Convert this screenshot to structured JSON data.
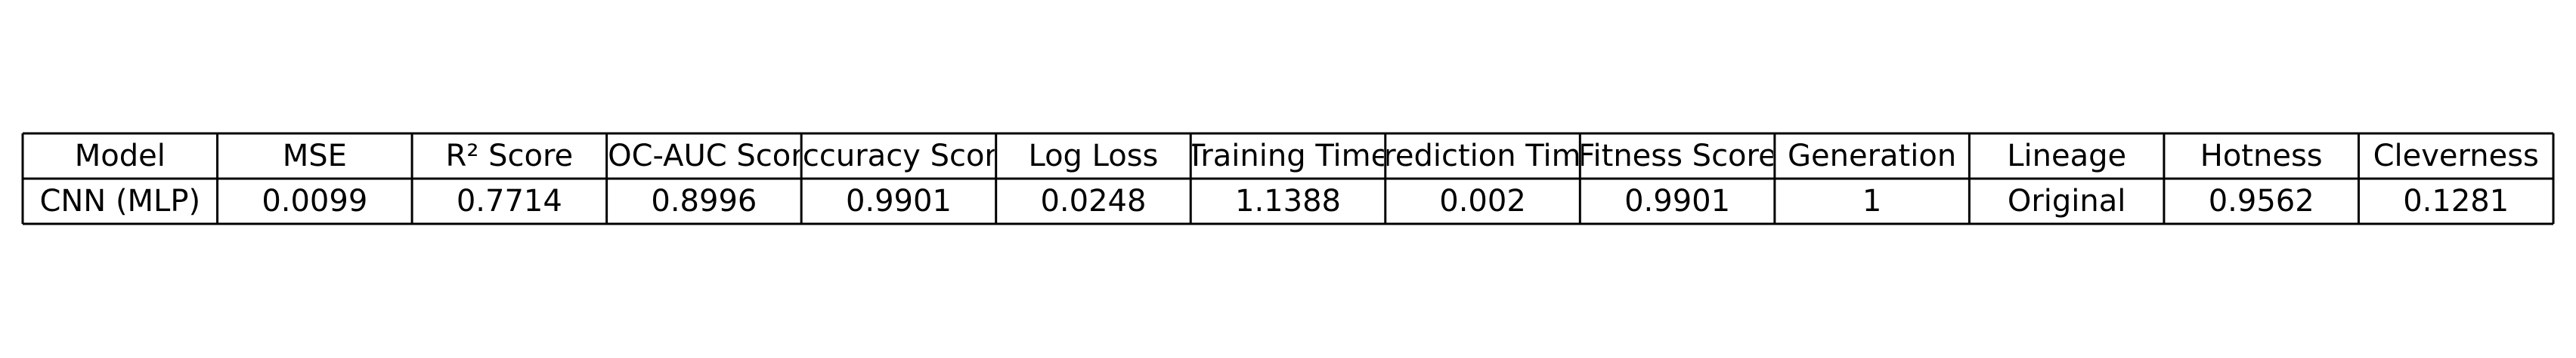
{
  "chart_data": {
    "type": "table",
    "columns": [
      "Model",
      "MSE",
      "R² Score",
      "ROC-AUC Score",
      "Accuracy Score",
      "Log Loss",
      "Training Time",
      "Prediction Time",
      "Fitness Score",
      "Generation",
      "Lineage",
      "Hotness",
      "Cleverness"
    ],
    "rows": [
      [
        "CNN (MLP)",
        "0.0099",
        "0.7714",
        "0.8996",
        "0.9901",
        "0.0248",
        "1.1388",
        "0.002",
        "0.9901",
        "1",
        "Original",
        "0.9562",
        "0.1281"
      ]
    ]
  }
}
